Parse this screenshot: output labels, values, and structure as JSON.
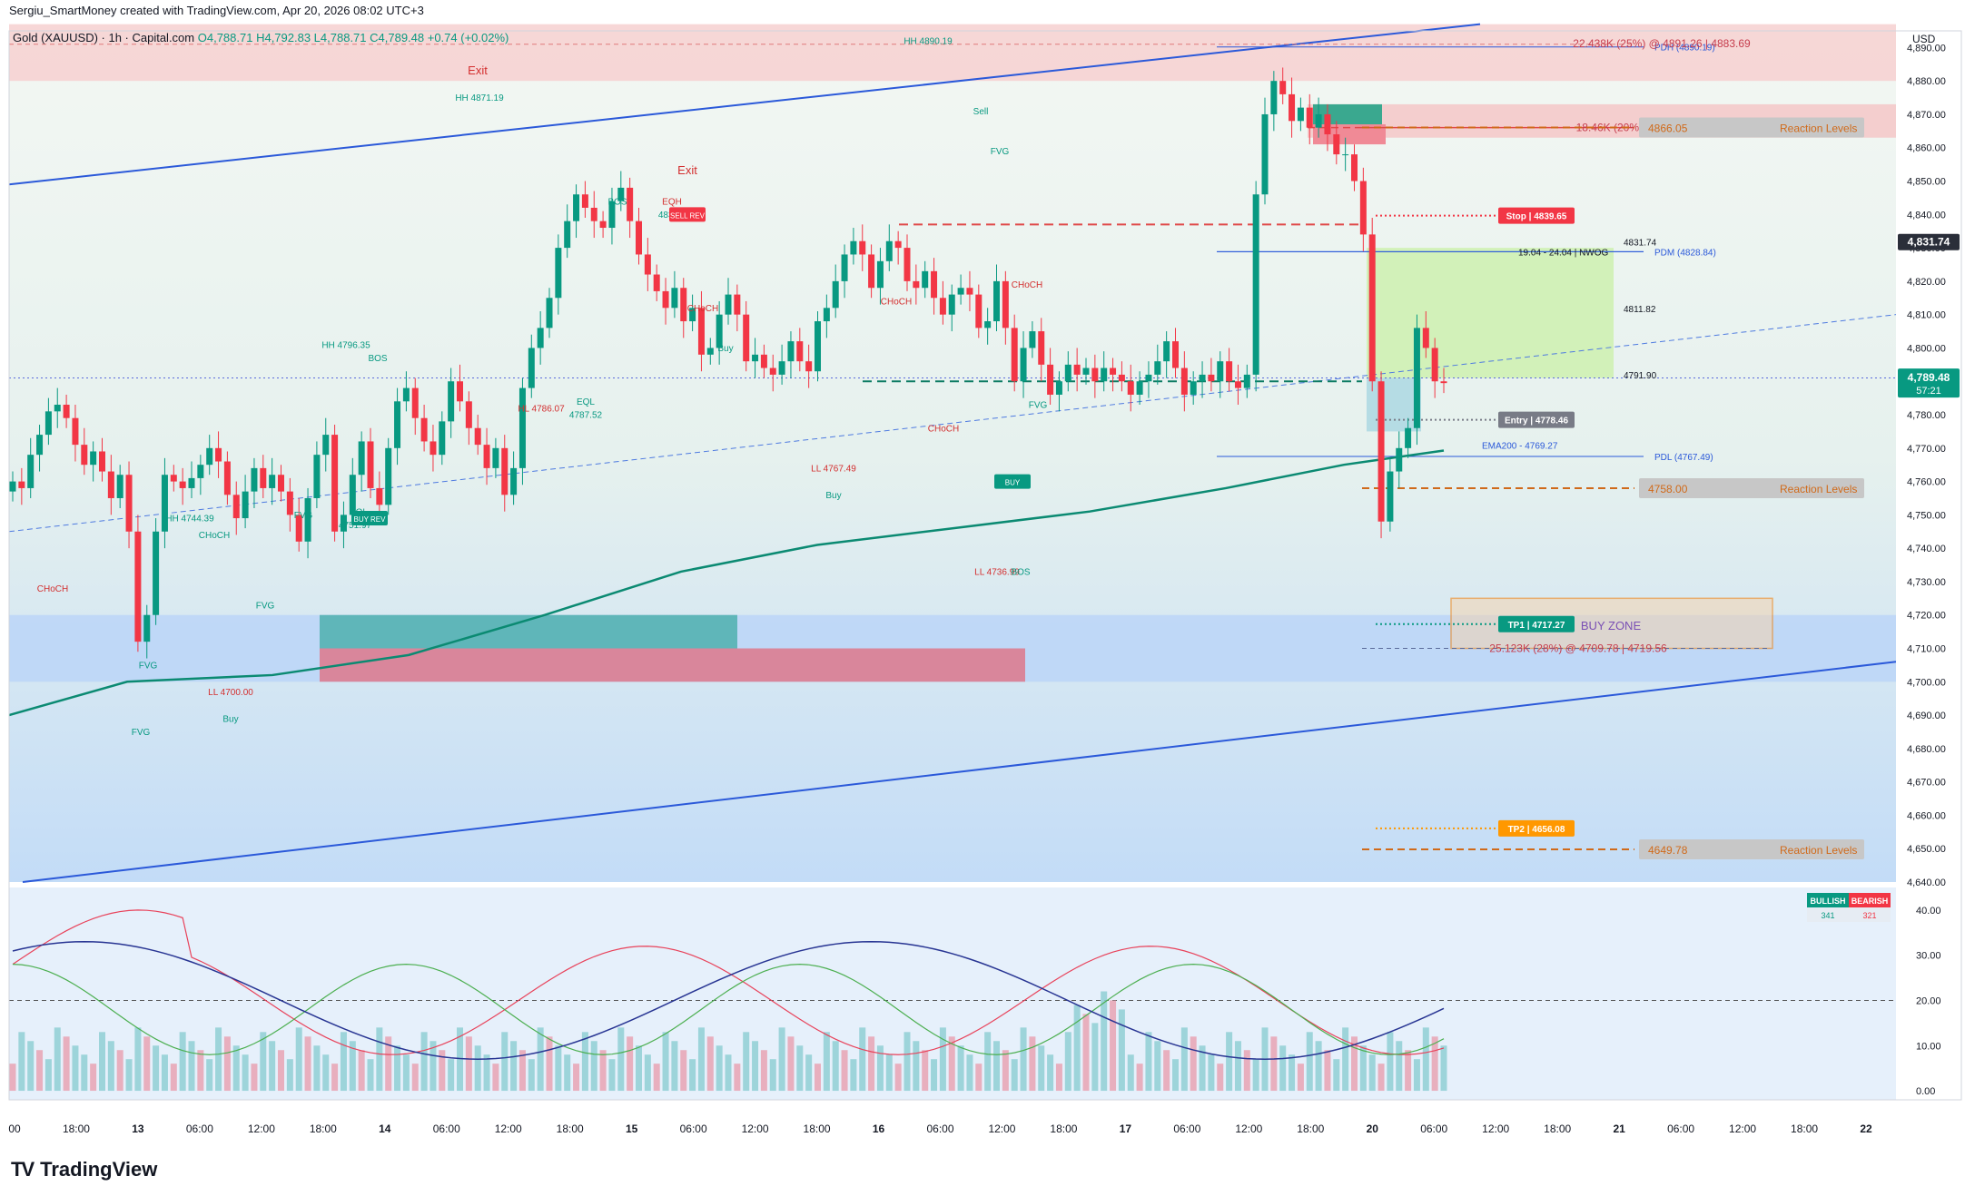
{
  "header": {
    "created_by": "Sergiu_SmartMoney created with TradingView.com, Apr 20, 2026 08:02 UTC+3",
    "symbol": "Gold (XAUUSD) · 1h · Capital.com",
    "ohlc": "O4,788.71 H4,792.83 L4,788.71 C4,789.48 +0.74 (+0.02%)"
  },
  "brand": {
    "name": "TradingView"
  },
  "colors": {
    "up": "#089981",
    "down": "#f23645",
    "ema": "#0b8a72",
    "channel": "#2b59d9",
    "zone_blue": "#bcd6f7",
    "zone_teal": "#5fb6b9",
    "zone_pink": "#d9869b"
  },
  "chart_data": {
    "type": "candlestick",
    "unit": "USD",
    "price_axis": {
      "min": 4640,
      "max": 4895,
      "ticks": [
        "4,890.00",
        "4,880.00",
        "4,870.00",
        "4,860.00",
        "4,850.00",
        "4,840.00",
        "4,830.00",
        "4,820.00",
        "4,810.00",
        "4,800.00",
        "4,790.00",
        "4,780.00",
        "4,770.00",
        "4,760.00",
        "4,750.00",
        "4,740.00",
        "4,730.00",
        "4,720.00",
        "4,710.00",
        "4,700.00",
        "4,690.00",
        "4,680.00",
        "4,670.00",
        "4,660.00",
        "4,650.00",
        "4,640.00"
      ]
    },
    "current_price": {
      "label": "4,789.48",
      "countdown": "57:21",
      "value": 4789.48
    },
    "prev_price": {
      "label": "4,831.74",
      "value": 4831.74
    },
    "time_axis": [
      "00",
      "18:00",
      "13",
      "06:00",
      "12:00",
      "18:00",
      "14",
      "06:00",
      "12:00",
      "18:00",
      "15",
      "06:00",
      "12:00",
      "18:00",
      "16",
      "06:00",
      "12:00",
      "18:00",
      "17",
      "06:00",
      "12:00",
      "18:00",
      "20",
      "06:00",
      "12:00",
      "18:00",
      "21",
      "06:00",
      "12:00",
      "18:00",
      "22"
    ],
    "bars_close": [
      4760,
      4758,
      4768,
      4774,
      4781,
      4783,
      4779,
      4771,
      4765,
      4769,
      4763,
      4755,
      4762,
      4745,
      4712,
      4720,
      4745,
      4762,
      4760,
      4758,
      4761,
      4765,
      4770,
      4766,
      4756,
      4749,
      4757,
      4764,
      4758,
      4762,
      4757,
      4750,
      4742,
      4755,
      4768,
      4774,
      4745,
      4750,
      4762,
      4772,
      4758,
      4753,
      4770,
      4784,
      4788,
      4779,
      4772,
      4768,
      4778,
      4790,
      4784,
      4776,
      4771,
      4764,
      4770,
      4756,
      4764,
      4788,
      4800,
      4806,
      4815,
      4830,
      4838,
      4846,
      4842,
      4838,
      4836,
      4844,
      4848,
      4838,
      4828,
      4822,
      4817,
      4812,
      4818,
      4808,
      4812,
      4798,
      4800,
      4810,
      4816,
      4810,
      4796,
      4798,
      4794,
      4792,
      4796,
      4802,
      4796,
      4793,
      4808,
      4812,
      4820,
      4828,
      4832,
      4828,
      4818,
      4826,
      4832,
      4830,
      4820,
      4818,
      4823,
      4815,
      4810,
      4816,
      4818,
      4816,
      4806,
      4808,
      4820,
      4806,
      4790,
      4800,
      4805,
      4795,
      4786,
      4790,
      4795,
      4792,
      4794,
      4790,
      4794,
      4792,
      4790,
      4786,
      4790,
      4792,
      4796,
      4802,
      4794,
      4786,
      4790,
      4792,
      4790,
      4796,
      4790,
      4788,
      4792,
      4846,
      4870,
      4880,
      4876,
      4868,
      4872,
      4866,
      4870,
      4864,
      4858,
      4858,
      4850,
      4834,
      4790,
      4748,
      4763,
      4770,
      4776,
      4806,
      4800,
      4790,
      4789.48
    ],
    "bars_ohlc_note": "hourly candles from Apr 12 through Apr 20 08:00",
    "ema200": {
      "label": "EMA200 - 4769.27",
      "value": 4769.27
    },
    "levels": [
      {
        "label": "PDH (4890.19)",
        "value": 4890.19
      },
      {
        "label": "PDM (4828.84)",
        "value": 4828.84
      },
      {
        "label": "PDL (4767.49)",
        "value": 4767.49
      },
      {
        "label": "19.04 - 24.04 | NWOG",
        "value": 4828.84
      }
    ],
    "orders": [
      {
        "label": "22.438K (25%) @ 4891.26 | 4883.69",
        "value": 4891.26
      },
      {
        "label": "18.46K (20%) @ 4868.35 | 4863.44",
        "value": 4866
      },
      {
        "label": "25.123K (28%) @ 4709.78 | 4719.56",
        "value": 4710
      }
    ],
    "reaction_levels": [
      {
        "price": "4866.05",
        "label": "Reaction Levels",
        "value": 4866.05
      },
      {
        "price": "4758.00",
        "label": "Reaction Levels",
        "value": 4758.0
      },
      {
        "price": "4649.78",
        "label": "Reaction Levels",
        "value": 4649.78
      }
    ],
    "trade_tags": [
      {
        "label": "Stop | 4839.65",
        "value": 4839.65,
        "color": "#f23645"
      },
      {
        "label": "Entry | 4778.46",
        "value": 4778.46,
        "color": "#787b86"
      },
      {
        "label": "TP1 | 4717.27",
        "value": 4717.27,
        "color": "#089981"
      },
      {
        "label": "TP2 | 4656.08",
        "value": 4656.08,
        "color": "#ff9800"
      }
    ],
    "side_labels": [
      {
        "label": "4831.74",
        "value": 4831.74
      },
      {
        "label": "4811.82",
        "value": 4811.82
      },
      {
        "label": "4791.90",
        "value": 4791.9
      }
    ],
    "zones": {
      "buy_zone": "BUY ZONE"
    },
    "annotations": [
      {
        "text": "HH 4890.19",
        "x": 1022,
        "price": 4891
      },
      {
        "text": "HH 4871.19",
        "x": 528,
        "price": 4874
      },
      {
        "text": "HH 4796.35",
        "x": 381,
        "price": 4800
      },
      {
        "text": "HH 4744.39",
        "x": 209,
        "price": 4748
      },
      {
        "text": "HL 4786.07",
        "x": 596,
        "price": 4781
      },
      {
        "text": "EQL",
        "x": 645,
        "price": 4783
      },
      {
        "text": "4787.52",
        "x": 645,
        "price": 4779
      },
      {
        "text": "EQH",
        "x": 740,
        "price": 4843
      },
      {
        "text": "4838",
        "x": 736,
        "price": 4839
      },
      {
        "text": "EQL",
        "x": 395,
        "price": 4750
      },
      {
        "text": "4751.97",
        "x": 391,
        "price": 4746
      },
      {
        "text": "LL 4767.49",
        "x": 918,
        "price": 4763
      },
      {
        "text": "LL 4736.99",
        "x": 1098,
        "price": 4732
      },
      {
        "text": "BOS",
        "x": 1124,
        "price": 4732
      },
      {
        "text": "LL 4700.00",
        "x": 254,
        "price": 4696
      },
      {
        "text": "BOS",
        "x": 680,
        "price": 4843
      },
      {
        "text": "BOS",
        "x": 416,
        "price": 4796
      },
      {
        "text": "CHoCH",
        "x": 236,
        "price": 4743
      },
      {
        "text": "CHoCH",
        "x": 58,
        "price": 4727
      },
      {
        "text": "CHoCH",
        "x": 774,
        "price": 4811
      },
      {
        "text": "CHoCH",
        "x": 987,
        "price": 4813
      },
      {
        "text": "CHoCH",
        "x": 1039,
        "price": 4775
      },
      {
        "text": "CHoCH",
        "x": 1131,
        "price": 4818
      },
      {
        "text": "Buy",
        "x": 254,
        "price": 4688
      },
      {
        "text": "Buy",
        "x": 799,
        "price": 4799
      },
      {
        "text": "Buy",
        "x": 918,
        "price": 4755
      },
      {
        "text": "Exit",
        "x": 526,
        "price": 4882
      },
      {
        "text": "Exit",
        "x": 757,
        "price": 4852
      },
      {
        "text": "Sell",
        "x": 1080,
        "price": 4870
      },
      {
        "text": "FVG",
        "x": 163,
        "price": 4704
      },
      {
        "text": "FVG",
        "x": 155,
        "price": 4684
      },
      {
        "text": "FVG",
        "x": 292,
        "price": 4722
      },
      {
        "text": "FVG",
        "x": 334,
        "price": 4749
      },
      {
        "text": "FVG",
        "x": 1101,
        "price": 4858
      },
      {
        "text": "FVG",
        "x": 1143,
        "price": 4782
      }
    ],
    "badges": [
      {
        "text": "SELL REV",
        "x": 757,
        "price": 4840
      },
      {
        "text": "BUY REV",
        "x": 407,
        "price": 4749
      },
      {
        "text": "BUY",
        "x": 1115,
        "price": 4760
      }
    ],
    "indicator": {
      "axis_ticks": [
        "40.00",
        "30.00",
        "20.00",
        "10.00",
        "0.00"
      ],
      "range": [
        -2,
        45
      ],
      "threshold": 20,
      "legend": {
        "bullish_label": "BULLISH",
        "bearish_label": "BEARISH",
        "bullish_value": "341",
        "bearish_value": "321"
      }
    }
  }
}
